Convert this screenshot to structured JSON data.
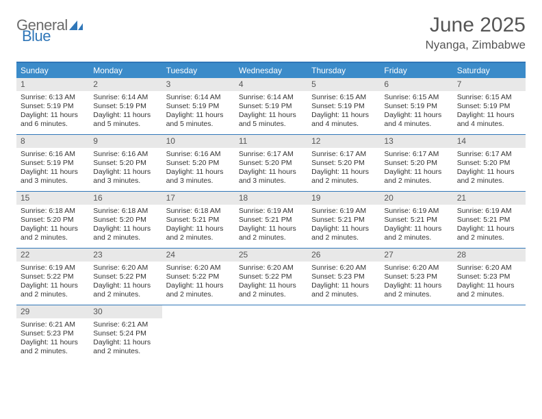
{
  "brand": {
    "line1": "General",
    "line2": "Blue"
  },
  "title": "June 2025",
  "location": "Nyanga, Zimbabwe",
  "colors": {
    "accent": "#3b8bc9",
    "rule": "#2f76b8",
    "daynum_bg": "#e8e8e8"
  },
  "dow": [
    "Sunday",
    "Monday",
    "Tuesday",
    "Wednesday",
    "Thursday",
    "Friday",
    "Saturday"
  ],
  "weeks": [
    [
      {
        "n": "1",
        "sr": "Sunrise: 6:13 AM",
        "ss": "Sunset: 5:19 PM",
        "d1": "Daylight: 11 hours",
        "d2": "and 6 minutes."
      },
      {
        "n": "2",
        "sr": "Sunrise: 6:14 AM",
        "ss": "Sunset: 5:19 PM",
        "d1": "Daylight: 11 hours",
        "d2": "and 5 minutes."
      },
      {
        "n": "3",
        "sr": "Sunrise: 6:14 AM",
        "ss": "Sunset: 5:19 PM",
        "d1": "Daylight: 11 hours",
        "d2": "and 5 minutes."
      },
      {
        "n": "4",
        "sr": "Sunrise: 6:14 AM",
        "ss": "Sunset: 5:19 PM",
        "d1": "Daylight: 11 hours",
        "d2": "and 5 minutes."
      },
      {
        "n": "5",
        "sr": "Sunrise: 6:15 AM",
        "ss": "Sunset: 5:19 PM",
        "d1": "Daylight: 11 hours",
        "d2": "and 4 minutes."
      },
      {
        "n": "6",
        "sr": "Sunrise: 6:15 AM",
        "ss": "Sunset: 5:19 PM",
        "d1": "Daylight: 11 hours",
        "d2": "and 4 minutes."
      },
      {
        "n": "7",
        "sr": "Sunrise: 6:15 AM",
        "ss": "Sunset: 5:19 PM",
        "d1": "Daylight: 11 hours",
        "d2": "and 4 minutes."
      }
    ],
    [
      {
        "n": "8",
        "sr": "Sunrise: 6:16 AM",
        "ss": "Sunset: 5:19 PM",
        "d1": "Daylight: 11 hours",
        "d2": "and 3 minutes."
      },
      {
        "n": "9",
        "sr": "Sunrise: 6:16 AM",
        "ss": "Sunset: 5:20 PM",
        "d1": "Daylight: 11 hours",
        "d2": "and 3 minutes."
      },
      {
        "n": "10",
        "sr": "Sunrise: 6:16 AM",
        "ss": "Sunset: 5:20 PM",
        "d1": "Daylight: 11 hours",
        "d2": "and 3 minutes."
      },
      {
        "n": "11",
        "sr": "Sunrise: 6:17 AM",
        "ss": "Sunset: 5:20 PM",
        "d1": "Daylight: 11 hours",
        "d2": "and 3 minutes."
      },
      {
        "n": "12",
        "sr": "Sunrise: 6:17 AM",
        "ss": "Sunset: 5:20 PM",
        "d1": "Daylight: 11 hours",
        "d2": "and 2 minutes."
      },
      {
        "n": "13",
        "sr": "Sunrise: 6:17 AM",
        "ss": "Sunset: 5:20 PM",
        "d1": "Daylight: 11 hours",
        "d2": "and 2 minutes."
      },
      {
        "n": "14",
        "sr": "Sunrise: 6:17 AM",
        "ss": "Sunset: 5:20 PM",
        "d1": "Daylight: 11 hours",
        "d2": "and 2 minutes."
      }
    ],
    [
      {
        "n": "15",
        "sr": "Sunrise: 6:18 AM",
        "ss": "Sunset: 5:20 PM",
        "d1": "Daylight: 11 hours",
        "d2": "and 2 minutes."
      },
      {
        "n": "16",
        "sr": "Sunrise: 6:18 AM",
        "ss": "Sunset: 5:20 PM",
        "d1": "Daylight: 11 hours",
        "d2": "and 2 minutes."
      },
      {
        "n": "17",
        "sr": "Sunrise: 6:18 AM",
        "ss": "Sunset: 5:21 PM",
        "d1": "Daylight: 11 hours",
        "d2": "and 2 minutes."
      },
      {
        "n": "18",
        "sr": "Sunrise: 6:19 AM",
        "ss": "Sunset: 5:21 PM",
        "d1": "Daylight: 11 hours",
        "d2": "and 2 minutes."
      },
      {
        "n": "19",
        "sr": "Sunrise: 6:19 AM",
        "ss": "Sunset: 5:21 PM",
        "d1": "Daylight: 11 hours",
        "d2": "and 2 minutes."
      },
      {
        "n": "20",
        "sr": "Sunrise: 6:19 AM",
        "ss": "Sunset: 5:21 PM",
        "d1": "Daylight: 11 hours",
        "d2": "and 2 minutes."
      },
      {
        "n": "21",
        "sr": "Sunrise: 6:19 AM",
        "ss": "Sunset: 5:21 PM",
        "d1": "Daylight: 11 hours",
        "d2": "and 2 minutes."
      }
    ],
    [
      {
        "n": "22",
        "sr": "Sunrise: 6:19 AM",
        "ss": "Sunset: 5:22 PM",
        "d1": "Daylight: 11 hours",
        "d2": "and 2 minutes."
      },
      {
        "n": "23",
        "sr": "Sunrise: 6:20 AM",
        "ss": "Sunset: 5:22 PM",
        "d1": "Daylight: 11 hours",
        "d2": "and 2 minutes."
      },
      {
        "n": "24",
        "sr": "Sunrise: 6:20 AM",
        "ss": "Sunset: 5:22 PM",
        "d1": "Daylight: 11 hours",
        "d2": "and 2 minutes."
      },
      {
        "n": "25",
        "sr": "Sunrise: 6:20 AM",
        "ss": "Sunset: 5:22 PM",
        "d1": "Daylight: 11 hours",
        "d2": "and 2 minutes."
      },
      {
        "n": "26",
        "sr": "Sunrise: 6:20 AM",
        "ss": "Sunset: 5:23 PM",
        "d1": "Daylight: 11 hours",
        "d2": "and 2 minutes."
      },
      {
        "n": "27",
        "sr": "Sunrise: 6:20 AM",
        "ss": "Sunset: 5:23 PM",
        "d1": "Daylight: 11 hours",
        "d2": "and 2 minutes."
      },
      {
        "n": "28",
        "sr": "Sunrise: 6:20 AM",
        "ss": "Sunset: 5:23 PM",
        "d1": "Daylight: 11 hours",
        "d2": "and 2 minutes."
      }
    ],
    [
      {
        "n": "29",
        "sr": "Sunrise: 6:21 AM",
        "ss": "Sunset: 5:23 PM",
        "d1": "Daylight: 11 hours",
        "d2": "and 2 minutes."
      },
      {
        "n": "30",
        "sr": "Sunrise: 6:21 AM",
        "ss": "Sunset: 5:24 PM",
        "d1": "Daylight: 11 hours",
        "d2": "and 2 minutes."
      },
      null,
      null,
      null,
      null,
      null
    ]
  ]
}
